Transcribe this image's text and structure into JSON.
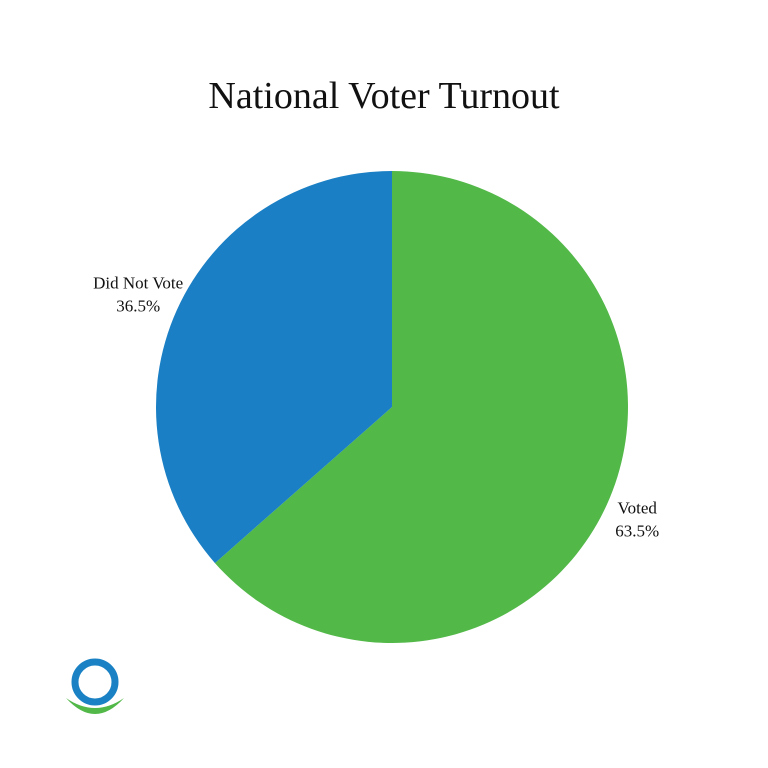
{
  "colors": {
    "background": "#ffffff",
    "logo_ring": "#1a82c4",
    "logo_arc": "#52b848"
  },
  "logo": {
    "icon": "ring-and-arc-logo-icon"
  },
  "chart_data": {
    "type": "pie",
    "title": "National Voter Turnout",
    "start_angle_deg": 0,
    "direction": "clockwise",
    "legend": "none",
    "slices": [
      {
        "label": "Voted",
        "value": 63.5,
        "value_label": "63.5%",
        "color": "#52b848"
      },
      {
        "label": "Did Not Vote",
        "value": 36.5,
        "value_label": "36.5%",
        "color": "#1a7fc4"
      }
    ]
  }
}
